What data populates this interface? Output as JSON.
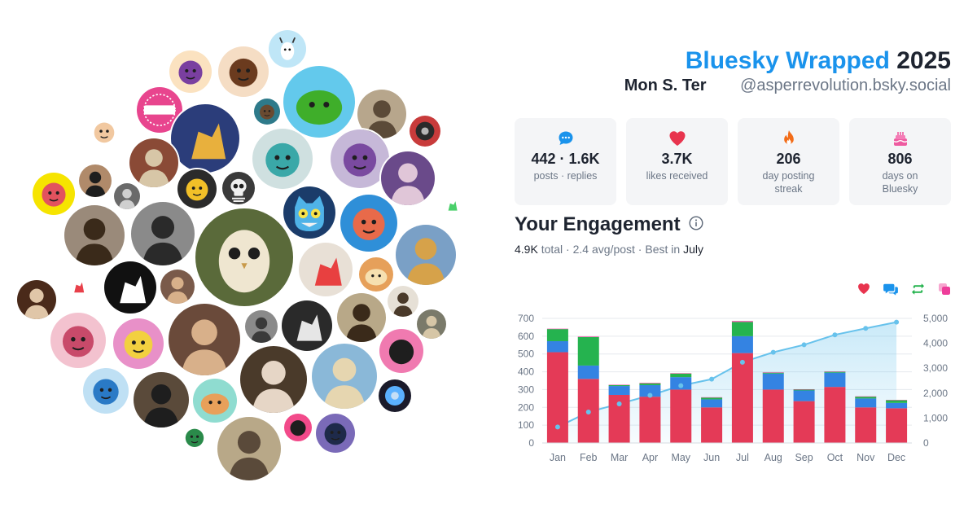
{
  "header": {
    "brand": "Bluesky Wrapped",
    "year": "2025",
    "display_name": "Mon S. Ter",
    "handle": "@asperrevolution.bsky.social"
  },
  "stats": [
    {
      "icon": "speech-bubble-icon",
      "color": "#1a93ec",
      "value": "442 · 1.6K",
      "label": "posts · replies"
    },
    {
      "icon": "heart-icon",
      "color": "#e8344e",
      "value": "3.7K",
      "label": "likes received"
    },
    {
      "icon": "flame-icon",
      "color": "#f26c18",
      "value": "206",
      "label": "day posting streak"
    },
    {
      "icon": "cake-icon",
      "color": "#ee5ba0",
      "value": "806",
      "label": "days on Bluesky"
    }
  ],
  "engagement": {
    "title": "Your Engagement",
    "total": "4.9K",
    "total_word": "total",
    "avg": "2.4 avg/post",
    "best_prefix": "Best in",
    "best_month": "July"
  },
  "legend_icons": [
    {
      "name": "likes-legend-icon",
      "color": "#e8344e"
    },
    {
      "name": "replies-legend-icon",
      "color": "#1a93ec"
    },
    {
      "name": "reposts-legend-icon",
      "color": "#22b24c"
    },
    {
      "name": "quotes-legend-icon",
      "color": "#ee3d9a"
    }
  ],
  "chart_data": {
    "type": "bar",
    "stacked": true,
    "categories": [
      "Jan",
      "Feb",
      "Mar",
      "Apr",
      "May",
      "Jun",
      "Jul",
      "Aug",
      "Sep",
      "Oct",
      "Nov",
      "Dec"
    ],
    "series": [
      {
        "color": "#e43a57",
        "values": [
          510,
          360,
          270,
          260,
          300,
          200,
          505,
          300,
          235,
          315,
          200,
          195
        ]
      },
      {
        "color": "#3483e2",
        "values": [
          62,
          75,
          50,
          65,
          70,
          45,
          95,
          90,
          60,
          80,
          50,
          30
        ]
      },
      {
        "color": "#25b34f",
        "values": [
          68,
          160,
          5,
          10,
          20,
          10,
          80,
          5,
          5,
          5,
          10,
          15
        ]
      },
      {
        "color": "#ee3d9a",
        "values": [
          2,
          3,
          2,
          3,
          2,
          2,
          5,
          2,
          2,
          2,
          2,
          2
        ]
      }
    ],
    "cumulative": {
      "color": "#67c2ec",
      "values": [
        640,
        1240,
        1570,
        1910,
        2300,
        2560,
        3240,
        3640,
        3940,
        4340,
        4600,
        4850
      ]
    },
    "yticks_left": [
      "700",
      "600",
      "500",
      "400",
      "300",
      "200",
      "100",
      "0"
    ],
    "yticks_right": [
      "5,000",
      "4,000",
      "3,000",
      "2,000",
      "1,000",
      "0"
    ],
    "ylim_left": [
      0,
      700
    ],
    "ylim_right": [
      0,
      5000
    ],
    "grid": true
  },
  "avatars": [
    {
      "name": "avatar-goat",
      "bg": "#bfe6f7",
      "fg": "#ffffff",
      "motif": "goat"
    },
    {
      "name": "avatar-hat-cartoon",
      "bg": "#fbe2c0",
      "fg": "#7a3fa0",
      "motif": "face"
    },
    {
      "name": "avatar-glasses-cartoon",
      "bg": "#f5ddc4",
      "fg": "#6b3b1e",
      "motif": "face"
    },
    {
      "name": "avatar-green-planet",
      "bg": "#63c9ec",
      "fg": "#3fae2a",
      "motif": "blob"
    },
    {
      "name": "avatar-nerd-cartoon",
      "bg": "#ffffff",
      "fg": "#f1c8a0",
      "motif": "face"
    },
    {
      "name": "avatar-painting-child",
      "bg": "#b7a68c",
      "fg": "#5b4a38",
      "motif": "portrait"
    },
    {
      "name": "avatar-barbie",
      "bg": "#e8458e",
      "fg": "#ffffff",
      "motif": "text"
    },
    {
      "name": "avatar-small-figure",
      "bg": "#2b3d7a",
      "fg": "#e8b03d",
      "motif": "figure"
    },
    {
      "name": "avatar-bearded-man",
      "bg": "#2e7a8a",
      "fg": "#6a4a30",
      "motif": "face"
    },
    {
      "name": "avatar-vinyl",
      "bg": "#c83b3b",
      "fg": "#2a2a2a",
      "motif": "disc"
    },
    {
      "name": "avatar-iron-maiden",
      "bg": "#8a4a36",
      "fg": "#d7c6a7",
      "motif": "portrait"
    },
    {
      "name": "avatar-lamb",
      "bg": "#c6b8d8",
      "fg": "#7a4aa0",
      "motif": "face"
    },
    {
      "name": "avatar-dark-woman",
      "bg": "#6a4a8a",
      "fg": "#e0c6d8",
      "motif": "portrait"
    },
    {
      "name": "avatar-puppet",
      "bg": "#2b2b2b",
      "fg": "#f2c028",
      "motif": "face"
    },
    {
      "name": "avatar-skeleton",
      "bg": "#3a3a3a",
      "fg": "#f0f0f0",
      "motif": "skull"
    },
    {
      "name": "avatar-pink-hair",
      "bg": "#f6e400",
      "fg": "#e2525e",
      "motif": "face"
    },
    {
      "name": "avatar-hooded",
      "bg": "#b08a6a",
      "fg": "#1e1e1e",
      "motif": "portrait"
    },
    {
      "name": "avatar-old-man",
      "bg": "#6a6a6a",
      "fg": "#cfcfcf",
      "motif": "portrait"
    },
    {
      "name": "avatar-small-woman",
      "bg": "#9a8a7a",
      "fg": "#3a2a1a",
      "motif": "portrait"
    },
    {
      "name": "avatar-bw-man",
      "bg": "#8a8a8a",
      "fg": "#2a2a2a",
      "motif": "portrait"
    },
    {
      "name": "avatar-owl",
      "bg": "#5a6a3a",
      "fg": "#efe6d0",
      "motif": "owl"
    },
    {
      "name": "avatar-blue-cat",
      "bg": "#1b3c6a",
      "fg": "#4fb3e8",
      "motif": "cat"
    },
    {
      "name": "avatar-cartoon-beard",
      "bg": "#2f8fd8",
      "fg": "#e86a4a",
      "motif": "face"
    },
    {
      "name": "avatar-field",
      "bg": "#7aa0c6",
      "fg": "#d6a24a",
      "motif": "portrait"
    },
    {
      "name": "avatar-baroque-woman",
      "bg": "#4a2a1a",
      "fg": "#e0c6a8",
      "motif": "portrait"
    },
    {
      "name": "avatar-black-dragon",
      "bg": "#111111",
      "fg": "#ffffff",
      "motif": "figure"
    },
    {
      "name": "avatar-baby-statue",
      "bg": "#7a5a4a",
      "fg": "#d8b08a",
      "motif": "portrait"
    },
    {
      "name": "avatar-red-window",
      "bg": "#e8e0d6",
      "fg": "#e84040",
      "motif": "figure"
    },
    {
      "name": "avatar-tea-cup",
      "bg": "#e6a05a",
      "fg": "#f6e0b0",
      "motif": "blob"
    },
    {
      "name": "avatar-teal-hair",
      "bg": "#cfe0e0",
      "fg": "#3aa8a8",
      "motif": "face"
    },
    {
      "name": "avatar-lady-sketch",
      "bg": "#e6e0d6",
      "fg": "#4a3a2a",
      "motif": "portrait"
    },
    {
      "name": "avatar-pink-fairy",
      "bg": "#f3c2cf",
      "fg": "#c84a6a",
      "motif": "face"
    },
    {
      "name": "avatar-pink-bird",
      "bg": "#e890c8",
      "fg": "#f2d040",
      "motif": "face"
    },
    {
      "name": "avatar-gun-painting",
      "bg": "#6a4a3a",
      "fg": "#d8b08a",
      "motif": "portrait"
    },
    {
      "name": "avatar-glasses-man",
      "bg": "#8a8a8a",
      "fg": "#3a3a3a",
      "motif": "portrait"
    },
    {
      "name": "avatar-tshirt",
      "bg": "#2a2a2a",
      "fg": "#e6e6e6",
      "motif": "figure"
    },
    {
      "name": "avatar-regency-woman",
      "bg": "#b8a888",
      "fg": "#3a2a1a",
      "motif": "portrait"
    },
    {
      "name": "avatar-masked-hero",
      "bg": "#f07ab0",
      "fg": "#1e1e1e",
      "motif": "face"
    },
    {
      "name": "avatar-beanie-man",
      "bg": "#7a7a6a",
      "fg": "#d6c6a6",
      "motif": "portrait"
    },
    {
      "name": "avatar-blue-girl",
      "bg": "#bfe0f4",
      "fg": "#2a7ac6",
      "motif": "face"
    },
    {
      "name": "avatar-sunglasses",
      "bg": "#5a4a3a",
      "fg": "#1e1e1e",
      "motif": "portrait"
    },
    {
      "name": "avatar-otter-phone",
      "bg": "#8fdcd0",
      "fg": "#e8a05a",
      "motif": "blob"
    },
    {
      "name": "avatar-curly-hair",
      "bg": "#4a3a2a",
      "fg": "#e6d6c6",
      "motif": "portrait"
    },
    {
      "name": "avatar-beach",
      "bg": "#8ab8d8",
      "fg": "#e6d6b0",
      "motif": "portrait"
    },
    {
      "name": "avatar-blue-orb",
      "bg": "#1a1a2a",
      "fg": "#5ab0ff",
      "motif": "disc"
    },
    {
      "name": "avatar-pink-wizard",
      "bg": "#f24a8a",
      "fg": "#1e1e1e",
      "motif": "face"
    },
    {
      "name": "avatar-long-hair",
      "bg": "#7a6ab8",
      "fg": "#1e2a4a",
      "motif": "face"
    },
    {
      "name": "avatar-hero-green",
      "bg": "#ffffff",
      "fg": "#2a8a4a",
      "motif": "face"
    },
    {
      "name": "avatar-man-outdoors",
      "bg": "#b8a888",
      "fg": "#5a4a3a",
      "motif": "portrait"
    },
    {
      "name": "avatar-watermelon",
      "bg": "#ffffff",
      "fg": "#e8404a",
      "motif": "figure"
    },
    {
      "name": "avatar-green-bug",
      "bg": "#ffffff",
      "fg": "#4ad06a",
      "motif": "figure"
    }
  ]
}
